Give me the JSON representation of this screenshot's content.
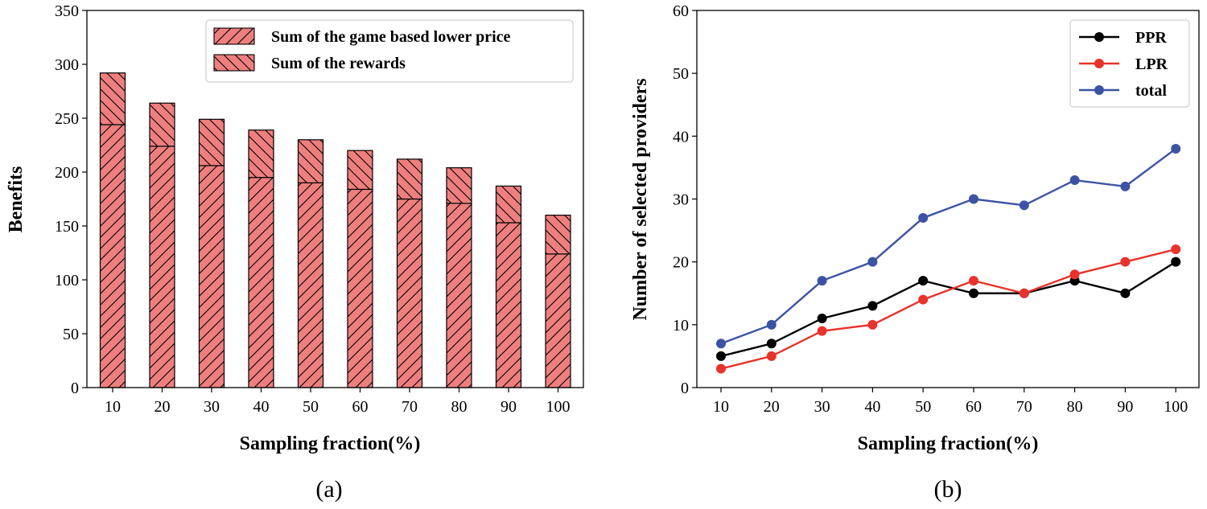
{
  "chart_data": [
    {
      "type": "bar",
      "stacked": true,
      "caption": "(a)",
      "xlabel": "Sampling fraction(%)",
      "ylabel": "Benefits",
      "ylim": [
        0,
        350
      ],
      "yticks": [
        0,
        50,
        100,
        150,
        200,
        250,
        300,
        350
      ],
      "categories": [
        "10",
        "20",
        "30",
        "40",
        "50",
        "60",
        "70",
        "80",
        "90",
        "100"
      ],
      "series": [
        {
          "name": "Sum of the game based lower price",
          "values": [
            244,
            224,
            206,
            195,
            190,
            184,
            175,
            171,
            153,
            124
          ]
        },
        {
          "name": "Sum of the rewards",
          "values": [
            48,
            40,
            43,
            44,
            40,
            36,
            37,
            33,
            34,
            36
          ]
        }
      ],
      "bar_color": "#ef7f7f",
      "legend_position": "top-right"
    },
    {
      "type": "line",
      "caption": "(b)",
      "xlabel": "Sampling fraction(%)",
      "ylabel": "Number of selected providers",
      "ylim": [
        0,
        60
      ],
      "yticks": [
        0,
        10,
        20,
        30,
        40,
        50,
        60
      ],
      "categories": [
        "10",
        "20",
        "30",
        "40",
        "50",
        "60",
        "70",
        "80",
        "90",
        "100"
      ],
      "series": [
        {
          "name": "PPR",
          "color": "#000000",
          "values": [
            5,
            7,
            11,
            13,
            17,
            15,
            15,
            17,
            15,
            20
          ]
        },
        {
          "name": "LPR",
          "color": "#e8322b",
          "values": [
            3,
            5,
            9,
            10,
            14,
            17,
            15,
            18,
            20,
            22
          ]
        },
        {
          "name": "total",
          "color": "#3c53a4",
          "values": [
            7,
            10,
            17,
            20,
            27,
            30,
            29,
            33,
            32,
            38
          ]
        }
      ],
      "legend_position": "top-right"
    }
  ]
}
